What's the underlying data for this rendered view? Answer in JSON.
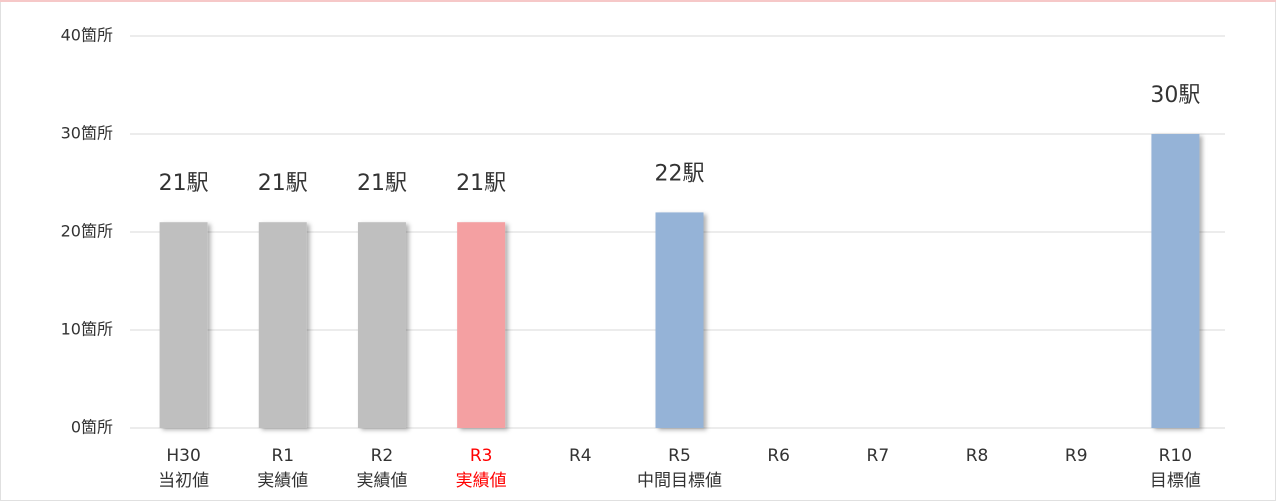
{
  "chart_data": {
    "type": "bar",
    "categories": [
      "H30",
      "R1",
      "R2",
      "R3",
      "R4",
      "R5",
      "R6",
      "R7",
      "R8",
      "R9",
      "R10"
    ],
    "category_notes": [
      "当初値",
      "実績値",
      "実績値",
      "実績値",
      null,
      "中間目標値",
      null,
      null,
      null,
      null,
      "目標値"
    ],
    "category_colors": [
      "#333333",
      "#333333",
      "#333333",
      "#ff0000",
      "#333333",
      "#333333",
      "#333333",
      "#333333",
      "#333333",
      "#333333",
      "#333333"
    ],
    "values": [
      21,
      21,
      21,
      21,
      null,
      22,
      null,
      null,
      null,
      null,
      30
    ],
    "value_labels": [
      "21駅",
      "21駅",
      "21駅",
      "21駅",
      null,
      "22駅",
      null,
      null,
      null,
      null,
      "30駅"
    ],
    "colors": [
      "#bfbfbf",
      "#bfbfbf",
      "#bfbfbf",
      "#f4a0a2",
      null,
      "#95b3d7",
      null,
      null,
      null,
      null,
      "#95b3d7"
    ],
    "ylim": [
      0,
      40
    ],
    "yticks": [
      {
        "value": 0,
        "label": "0箇所"
      },
      {
        "value": 10,
        "label": "10箇所"
      },
      {
        "value": 20,
        "label": "20箇所"
      },
      {
        "value": 30,
        "label": "30箇所"
      },
      {
        "value": 40,
        "label": "40箇所"
      }
    ],
    "grid": true
  }
}
